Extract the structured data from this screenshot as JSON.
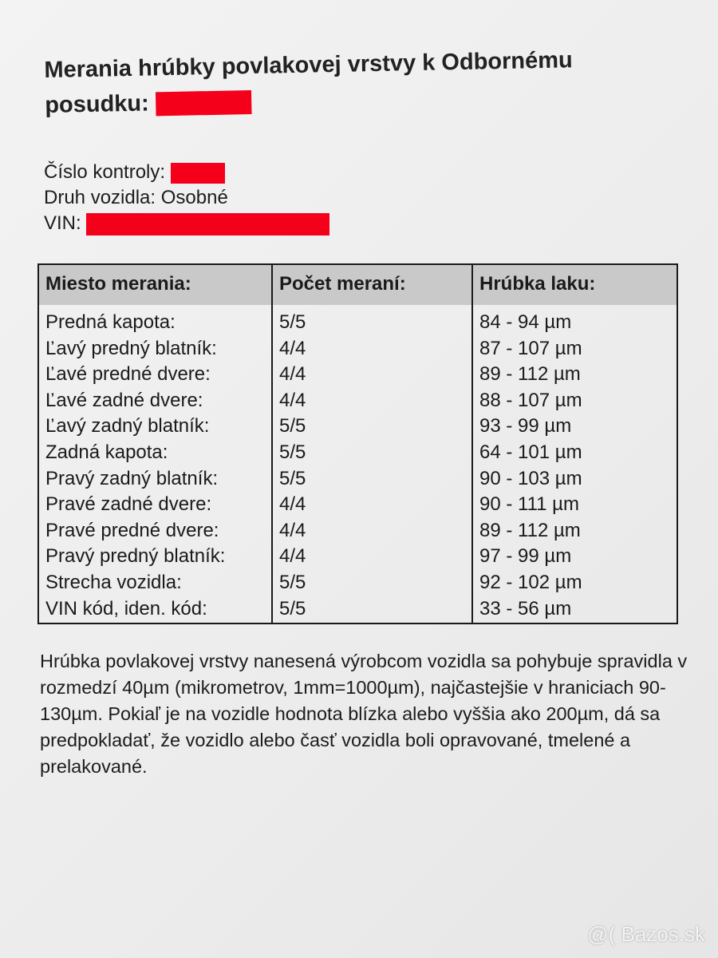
{
  "document": {
    "title_line1": "Merania hrúbky povlakovej vrstvy k Odbornému",
    "title_line2": "posudku:",
    "redaction_color": "#f5001a",
    "info": {
      "control_label": "Číslo kontroly:",
      "vehicle_type": "Druh vozidla: Osobné",
      "vin_label": "VIN:"
    },
    "table": {
      "headers": [
        "Miesto merania:",
        "Počet meraní:",
        "Hrúbka laku:"
      ],
      "rows": [
        [
          "Predná kapota:",
          "5/5",
          "84 - 94 µm"
        ],
        [
          "Ľavý predný blatník:",
          "4/4",
          "87 - 107 µm"
        ],
        [
          "Ľavé predné dvere:",
          "4/4",
          "89 - 112 µm"
        ],
        [
          "Ľavé zadné dvere:",
          "4/4",
          "88 - 107 µm"
        ],
        [
          "Ľavý zadný blatník:",
          "5/5",
          "93 - 99 µm"
        ],
        [
          "Zadná kapota:",
          "5/5",
          "64 - 101 µm"
        ],
        [
          "Pravý zadný blatník:",
          "5/5",
          "90 - 103 µm"
        ],
        [
          "Pravé zadné dvere:",
          "4/4",
          "90 - 111 µm"
        ],
        [
          "Pravé predné dvere:",
          "4/4",
          "89 - 112 µm"
        ],
        [
          "Pravý predný blatník:",
          "4/4",
          "97 - 99 µm"
        ],
        [
          "Strecha vozidla:",
          "5/5",
          "92 - 102 µm"
        ],
        [
          "VIN kód, iden. kód:",
          "5/5",
          "33 - 56 µm"
        ]
      ]
    },
    "paragraph": "Hrúbka povlakovej vrstvy nanesená výrobcom vozidla sa pohybuje spravidla v rozmedzí 40µm (mikrometrov, 1mm=1000µm), najčastejšie v hraniciach 90-130µm. Pokiaľ je na vozidle hodnota blízka alebo vyššia ako 200µm, dá sa predpokladať, že vozidlo alebo časť vozidla boli opravované, tmelené a prelakované."
  },
  "watermark": "@( Bazos.sk"
}
